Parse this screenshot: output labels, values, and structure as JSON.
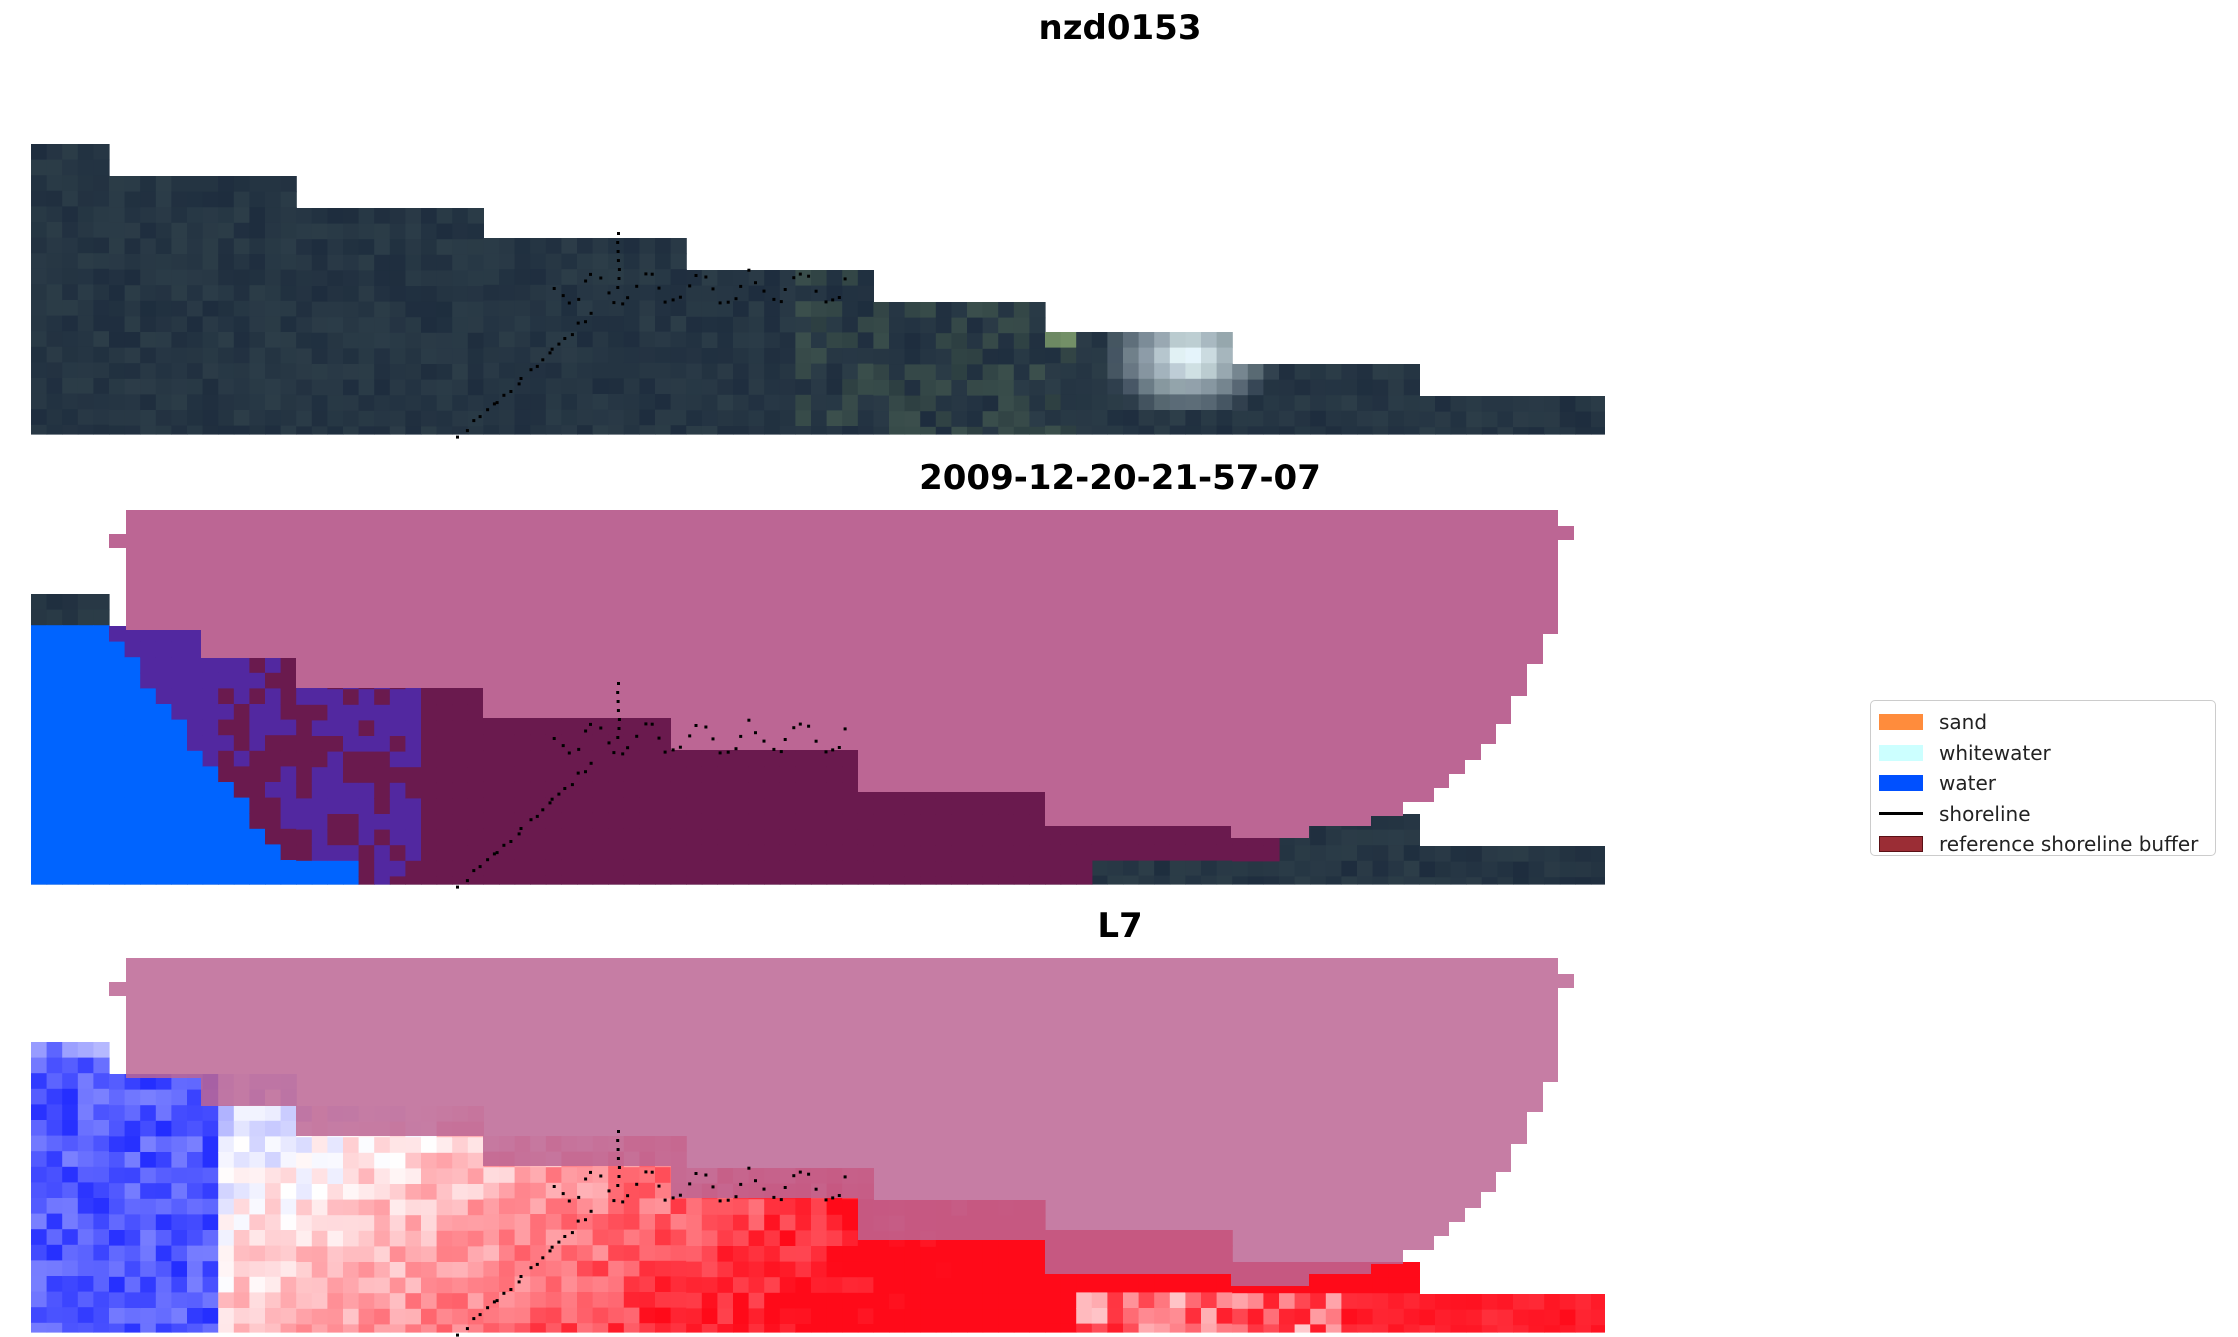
{
  "titles": {
    "top": "nzd0153",
    "middle": "2009-12-20-21-57-07",
    "bottom": "L7"
  },
  "legend": {
    "items": [
      {
        "label": "sand",
        "kind": "patch",
        "color": "#ff8c3c"
      },
      {
        "label": "whitewater",
        "kind": "patch",
        "color": "#ccffff"
      },
      {
        "label": "water",
        "kind": "patch",
        "color": "#0050ff"
      },
      {
        "label": "shoreline",
        "kind": "line",
        "color": "#000000"
      },
      {
        "label": "reference shoreline buffer",
        "kind": "patch",
        "color": "#9b2d35"
      }
    ]
  },
  "colors": {
    "background": "#ffffff",
    "satellite_dark": "#1f2e45",
    "satellite_green": "#2e3f45",
    "buffer_overlay": "#bc6694",
    "class_purple": "#5228a0",
    "class_maroon": "#6a1a4e",
    "water": "#0064ff",
    "index_blue": "#3840ff",
    "index_red": "#ff1020",
    "shoreline_dots": "#000000"
  }
}
